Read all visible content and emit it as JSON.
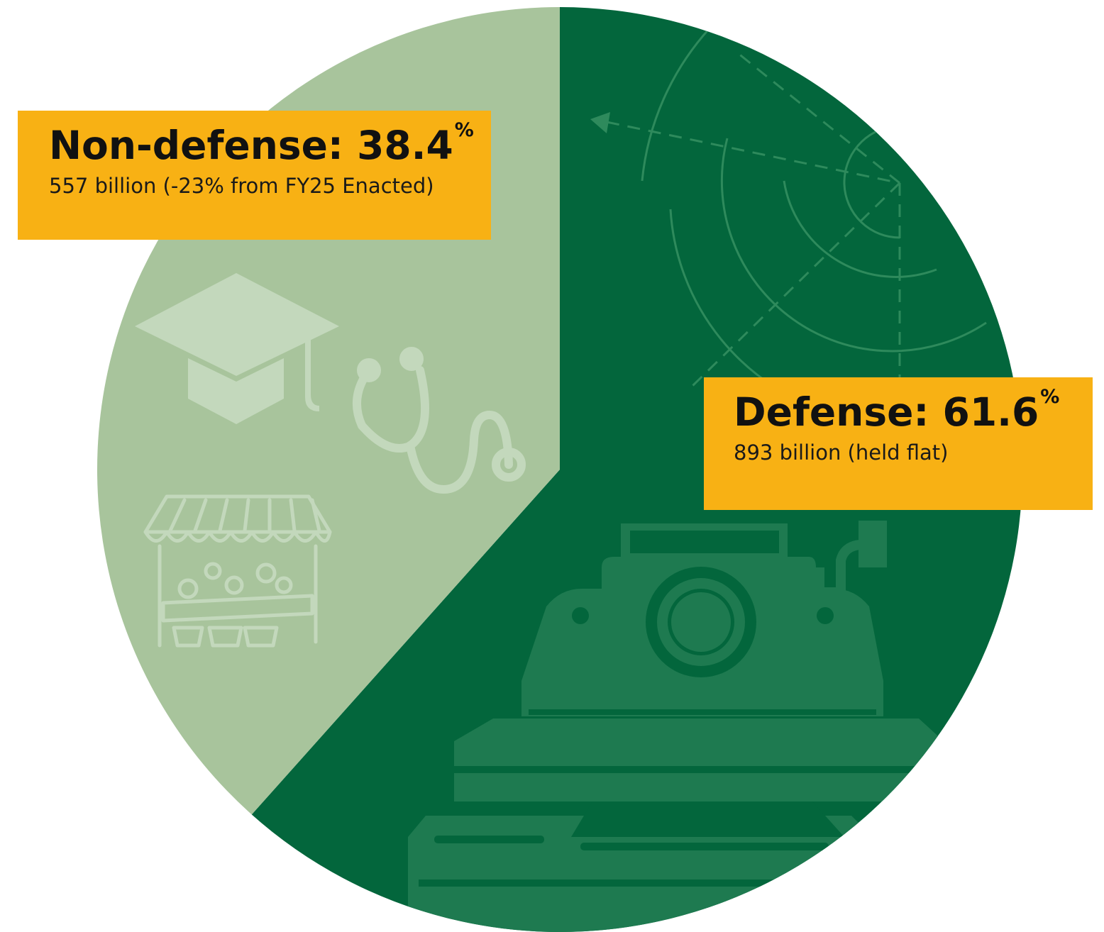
{
  "chart_data": {
    "type": "pie",
    "slices": [
      {
        "name": "Non-defense",
        "percent": 38.4,
        "pct_text": "38.4",
        "detail": "557 billion (-23% from FY25 Enacted)",
        "color": "#A8C49C",
        "icons": [
          "graduation-cap-icon",
          "stethoscope-icon",
          "market-stall-icon"
        ]
      },
      {
        "name": "Defense",
        "percent": 61.6,
        "pct_text": "61.6",
        "detail": "893 billion (held flat)",
        "color": "#03663C",
        "icons": [
          "radar-icon",
          "tank-icon"
        ]
      }
    ],
    "percent_symbol": "%",
    "separator": ":",
    "label_color": "#F8B114"
  }
}
